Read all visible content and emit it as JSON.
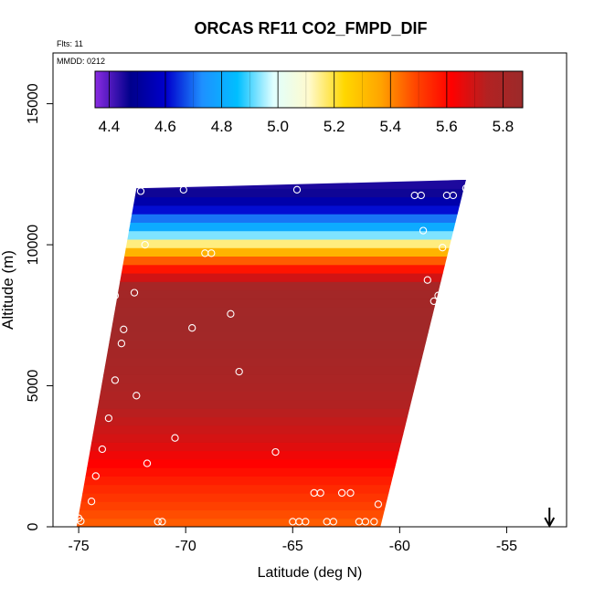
{
  "chart_data": {
    "type": "heatmap",
    "title": "ORCAS RF11 CO2_FMPD_DIF",
    "annotations": {
      "flights": "Flts: 11",
      "date": "MMDD: 0212"
    },
    "xlabel": "Latitude (deg N)",
    "ylabel": "Altitude (m)",
    "xlim": [
      -76.2,
      -52.2
    ],
    "ylim": [
      0,
      16800
    ],
    "x_ticks": [
      -75,
      -70,
      -65,
      -60,
      -55
    ],
    "x_tick_labels": [
      "-75",
      "-70",
      "-65",
      "-60",
      "-55"
    ],
    "y_ticks": [
      0,
      5000,
      10000,
      15000
    ],
    "y_tick_labels": [
      "0",
      "5000",
      "10000",
      "15000"
    ],
    "colorbar": {
      "range": [
        4.35,
        5.87
      ],
      "ticks": [
        4.4,
        4.6,
        4.8,
        5.0,
        5.2,
        5.4,
        5.6,
        5.8
      ],
      "tick_labels": [
        "4.4",
        "4.6",
        "4.8",
        "5.0",
        "5.2",
        "5.4",
        "5.6",
        "5.8"
      ],
      "colors": [
        "#8a2be2",
        "#00008b",
        "#0000cd",
        "#1e90ff",
        "#00bfff",
        "#e0ffff",
        "#fffacd",
        "#ffd700",
        "#ffa500",
        "#ff4500",
        "#ff0000",
        "#b22222",
        "#9b2a2a"
      ]
    },
    "grid": false,
    "heatmap_profile": [
      {
        "alt": 0,
        "value": 5.45
      },
      {
        "alt": 1500,
        "value": 5.55
      },
      {
        "alt": 3000,
        "value": 5.68
      },
      {
        "alt": 5000,
        "value": 5.78
      },
      {
        "alt": 7000,
        "value": 5.84
      },
      {
        "alt": 8500,
        "value": 5.82
      },
      {
        "alt": 9100,
        "value": 5.6
      },
      {
        "alt": 9600,
        "value": 5.4
      },
      {
        "alt": 10000,
        "value": 5.2
      },
      {
        "alt": 10300,
        "value": 4.95
      },
      {
        "alt": 10700,
        "value": 4.78
      },
      {
        "alt": 11300,
        "value": 4.6
      },
      {
        "alt": 11900,
        "value": 4.45
      }
    ],
    "swath_outline": [
      {
        "lat": -75.1,
        "alt": 0
      },
      {
        "lat": -60.9,
        "alt": 0
      },
      {
        "lat": -56.9,
        "alt": 12300
      },
      {
        "lat": -72.3,
        "alt": 12000
      }
    ],
    "observations": [
      {
        "lat": -72.1,
        "alt": 11900
      },
      {
        "lat": -70.1,
        "alt": 11950
      },
      {
        "lat": -64.8,
        "alt": 11950
      },
      {
        "lat": -59.3,
        "alt": 11750
      },
      {
        "lat": -59.0,
        "alt": 11750
      },
      {
        "lat": -57.8,
        "alt": 11750
      },
      {
        "lat": -57.5,
        "alt": 11750
      },
      {
        "lat": -56.9,
        "alt": 12000
      },
      {
        "lat": -71.9,
        "alt": 10000
      },
      {
        "lat": -69.1,
        "alt": 9700
      },
      {
        "lat": -68.8,
        "alt": 9700
      },
      {
        "lat": -58.9,
        "alt": 10500
      },
      {
        "lat": -58.0,
        "alt": 9900
      },
      {
        "lat": -58.7,
        "alt": 8750
      },
      {
        "lat": -58.4,
        "alt": 8000
      },
      {
        "lat": -58.2,
        "alt": 8200
      },
      {
        "lat": -73.3,
        "alt": 8200
      },
      {
        "lat": -72.4,
        "alt": 8300
      },
      {
        "lat": -73.6,
        "alt": 7300
      },
      {
        "lat": -72.9,
        "alt": 7000
      },
      {
        "lat": -69.7,
        "alt": 7050
      },
      {
        "lat": -67.9,
        "alt": 7550
      },
      {
        "lat": -73.0,
        "alt": 6500
      },
      {
        "lat": -67.5,
        "alt": 5500
      },
      {
        "lat": -73.3,
        "alt": 5200
      },
      {
        "lat": -74.2,
        "alt": 4900
      },
      {
        "lat": -72.3,
        "alt": 4650
      },
      {
        "lat": -73.6,
        "alt": 3850
      },
      {
        "lat": -70.5,
        "alt": 3150
      },
      {
        "lat": -73.9,
        "alt": 2750
      },
      {
        "lat": -65.8,
        "alt": 2650
      },
      {
        "lat": -74.8,
        "alt": 2500
      },
      {
        "lat": -71.8,
        "alt": 2250
      },
      {
        "lat": -74.2,
        "alt": 1800
      },
      {
        "lat": -64.0,
        "alt": 1200
      },
      {
        "lat": -63.7,
        "alt": 1200
      },
      {
        "lat": -62.7,
        "alt": 1200
      },
      {
        "lat": -62.3,
        "alt": 1200
      },
      {
        "lat": -74.4,
        "alt": 900
      },
      {
        "lat": -61.0,
        "alt": 800
      },
      {
        "lat": -75.0,
        "alt": 300
      },
      {
        "lat": -74.9,
        "alt": 200
      },
      {
        "lat": -71.3,
        "alt": 180
      },
      {
        "lat": -71.1,
        "alt": 180
      },
      {
        "lat": -65.0,
        "alt": 180
      },
      {
        "lat": -64.7,
        "alt": 180
      },
      {
        "lat": -64.4,
        "alt": 180
      },
      {
        "lat": -63.4,
        "alt": 180
      },
      {
        "lat": -63.1,
        "alt": 180
      },
      {
        "lat": -61.9,
        "alt": 180
      },
      {
        "lat": -61.6,
        "alt": 180
      },
      {
        "lat": -61.2,
        "alt": 180
      }
    ],
    "direction_arrow": {
      "lat": -53.0,
      "direction": "down"
    }
  }
}
